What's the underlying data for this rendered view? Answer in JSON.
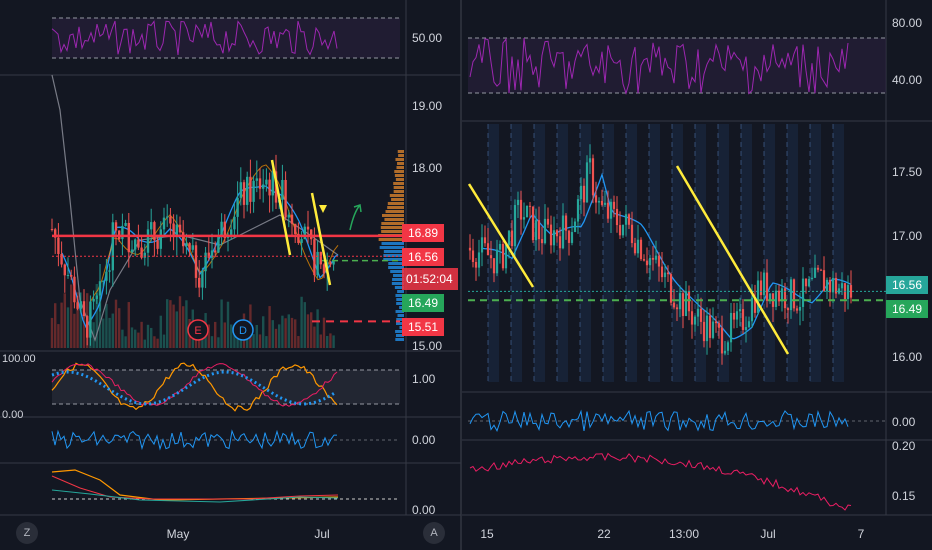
{
  "left_panel": {
    "corner_buttons": [
      "Z",
      "A"
    ],
    "x_labels": [
      "May",
      "Jul"
    ],
    "rsi": {
      "ticks": [
        "50.00"
      ],
      "band": [
        30,
        70
      ]
    },
    "price": {
      "ticks": [
        "19.00",
        "18.00",
        "15.00"
      ],
      "tags": [
        {
          "text": "16.89",
          "color": "#f23645"
        },
        {
          "text": "16.56",
          "color": "#f23645"
        },
        {
          "text": "01:52:04",
          "color": "#f23645"
        },
        {
          "text": "16.49",
          "color": "#26a65b"
        },
        {
          "text": "15.51",
          "color": "#f23645"
        }
      ],
      "events": [
        {
          "label": "E",
          "color": "#f23645"
        },
        {
          "label": "D",
          "color": "#2196f3"
        }
      ],
      "resistance": 16.89,
      "last": 16.56,
      "support": 16.49,
      "stop": 15.51
    },
    "osc1": {
      "ticks": [
        "100.00",
        "0.00",
        "1.00"
      ]
    },
    "osc2": {
      "ticks": [
        "0.00"
      ]
    },
    "osc3": {
      "ticks": [
        "0.00"
      ]
    }
  },
  "right_panel": {
    "x_labels": [
      "15",
      "22",
      "13:00",
      "Jul",
      "7"
    ],
    "rsi": {
      "ticks": [
        "80.00",
        "40.00"
      ]
    },
    "price": {
      "ticks": [
        "17.50",
        "17.00",
        "16.00"
      ],
      "tags": [
        {
          "text": "16.56",
          "color": "#26a69a"
        },
        {
          "text": "16.49",
          "color": "#26a65b"
        }
      ],
      "last": 16.56,
      "support": 16.49
    },
    "osc": {
      "ticks": [
        "0.00"
      ]
    },
    "vol": {
      "ticks": [
        "0.20",
        "0.15"
      ]
    }
  },
  "colors": {
    "background": "#131722",
    "up": "#26a69a",
    "down": "#ef5350",
    "rsi_line": "#9c27b0",
    "trendline": "#ffeb3b",
    "ma_line": "#2196f3",
    "support_dash": "#4caf50"
  },
  "chart_data": [
    {
      "type": "candlestick",
      "panel": "left",
      "x_labels": [
        "May",
        "Jul"
      ],
      "y_ticks": [
        19.0,
        18.0,
        15.0
      ],
      "ylim": [
        14.95,
        19.6
      ],
      "levels": {
        "resistance": 16.89,
        "last": 16.56,
        "support": 16.49,
        "stop": 15.51
      },
      "approx_range": [
        15.3,
        18.2
      ]
    },
    {
      "type": "candlestick",
      "panel": "right",
      "x_labels": [
        "15",
        "22",
        "13:00",
        "Jul",
        "7"
      ],
      "y_ticks": [
        17.5,
        17.0,
        16.0
      ],
      "ylim": [
        15.85,
        17.85
      ],
      "levels": {
        "last": 16.56,
        "support": 16.49
      },
      "approx_range": [
        16.05,
        17.6
      ]
    },
    {
      "type": "line",
      "panel": "right",
      "name": "",
      "y_ticks": [
        0.2,
        0.15
      ],
      "approx_start": 0.18,
      "approx_end": 0.14
    }
  ]
}
